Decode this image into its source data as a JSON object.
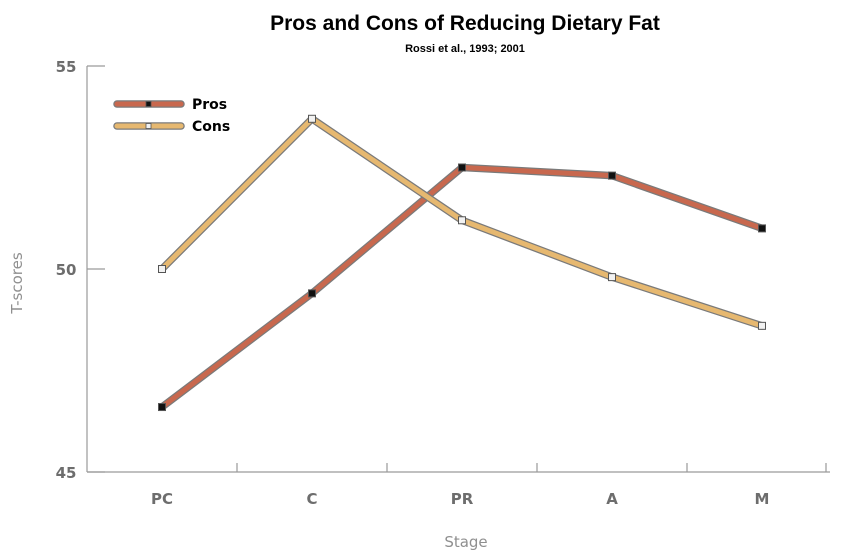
{
  "chart_data": {
    "type": "line",
    "title": "Pros and Cons of Reducing Dietary Fat",
    "subtitle": "Rossi et al., 1993; 2001",
    "xlabel": "Stage",
    "ylabel": "T-scores",
    "categories": [
      "PC",
      "C",
      "PR",
      "A",
      "M"
    ],
    "ylim": [
      45,
      55
    ],
    "yticks": [
      45,
      50,
      55
    ],
    "grid": false,
    "legend_position": "top-left",
    "series": [
      {
        "name": "Pros",
        "values": [
          46.6,
          49.4,
          52.5,
          52.3,
          51.0
        ],
        "color": "#c8684e",
        "marker_color": "#111111"
      },
      {
        "name": "Cons",
        "values": [
          50.0,
          53.7,
          51.2,
          49.8,
          48.6
        ],
        "color": "#e6b870",
        "marker_color": "#f2f2f2"
      }
    ]
  }
}
